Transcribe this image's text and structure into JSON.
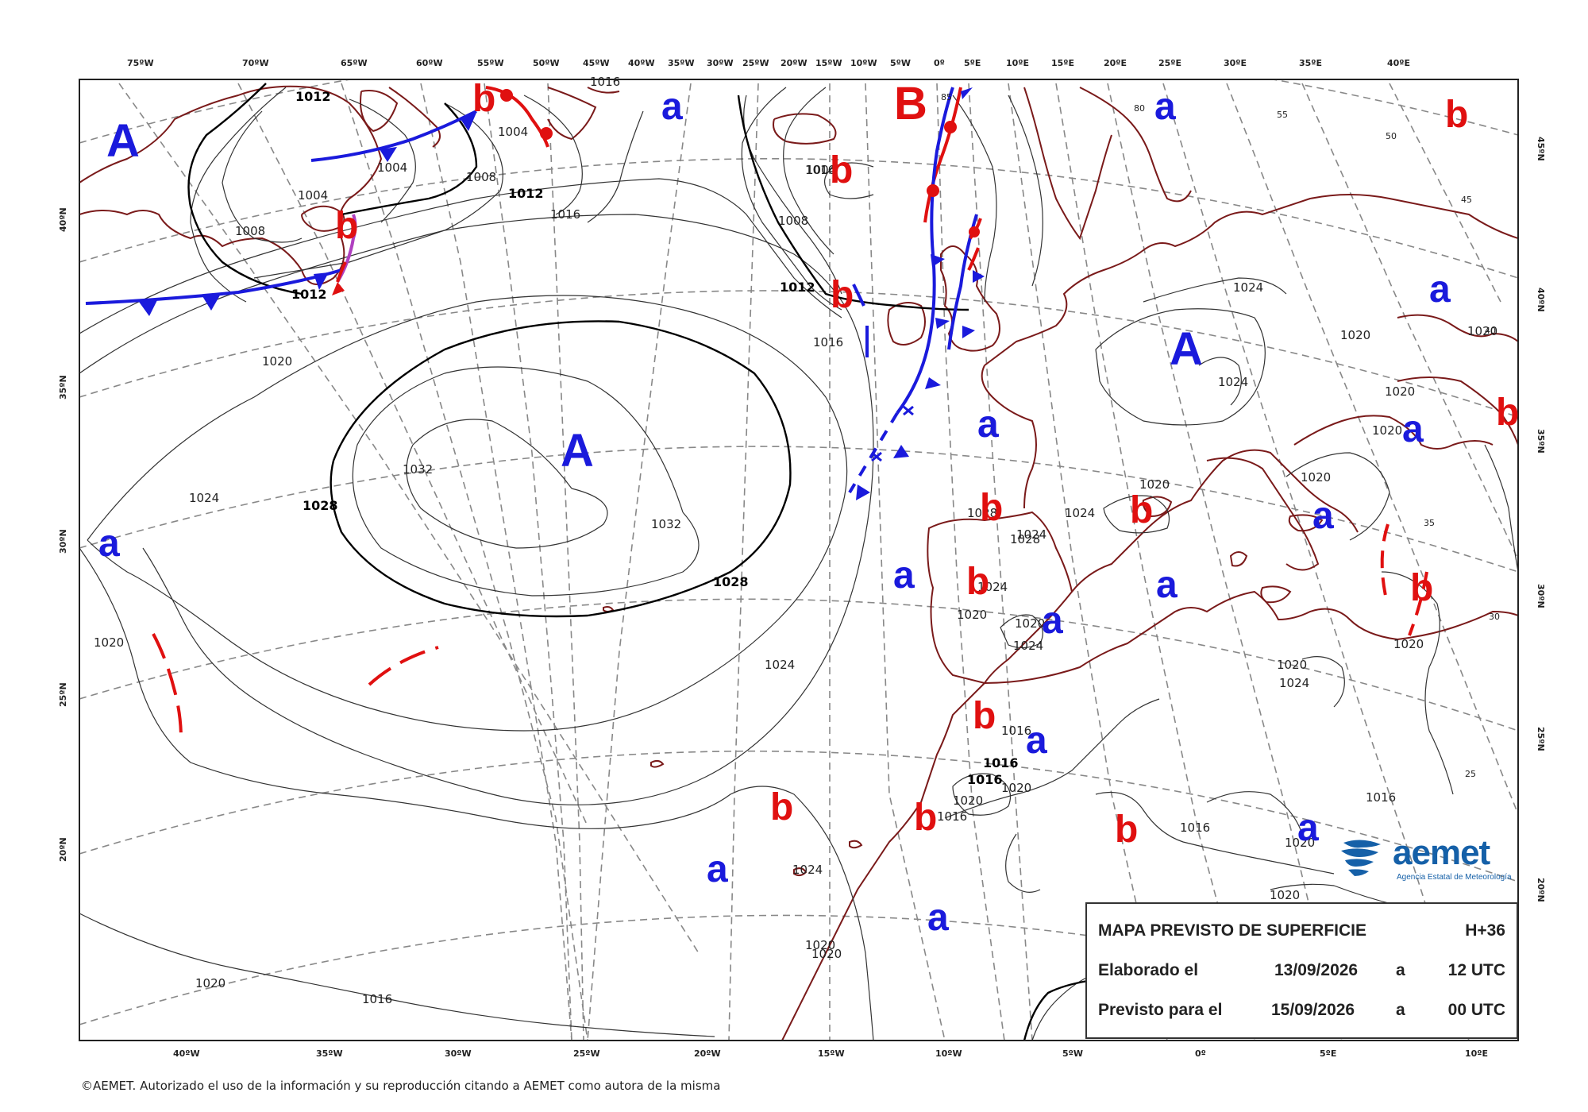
{
  "top_longitude_ticks": [
    "75ºW",
    "70ºW",
    "65ºW",
    "60ºW",
    "55ºW",
    "50ºW",
    "45ºW",
    "40ºW",
    "35ºW",
    "30ºW",
    "25ºW",
    "20ºW",
    "15ºW",
    "10ºW",
    "5ºW",
    "0º",
    "5ºE",
    "10ºE",
    "15ºE",
    "20ºE",
    "25ºE",
    "30ºE",
    "35ºE",
    "40ºE"
  ],
  "bottom_longitude_ticks": [
    "40ºW",
    "35ºW",
    "30ºW",
    "25ºW",
    "20ºW",
    "15ºW",
    "10ºW",
    "5ºW",
    "0º",
    "5ºE",
    "10ºE"
  ],
  "left_latitude_ticks": [
    "40ºN",
    "35ºN",
    "30ºN",
    "25ºN",
    "20ºN"
  ],
  "right_latitude_ticks": [
    "45ºN",
    "40ºN",
    "35ºN",
    "30ºN",
    "25ºN",
    "20ºN"
  ],
  "grid_labels": [
    "55",
    "50",
    "45",
    "40",
    "35",
    "30",
    "25",
    "85",
    "80"
  ],
  "isobar_labels": [
    "1012",
    "1004",
    "1004",
    "1008",
    "1012",
    "1016",
    "1008",
    "1012",
    "1016",
    "1004",
    "1016",
    "1004",
    "1008",
    "1012",
    "1016",
    "1020",
    "1024",
    "1020",
    "1024",
    "1032",
    "1028",
    "1032",
    "1028",
    "1024",
    "1020",
    "1020",
    "1020",
    "1024",
    "1020",
    "1020",
    "1020",
    "1024",
    "1024",
    "1028",
    "1028",
    "1024",
    "1020",
    "1020",
    "1024",
    "1016",
    "1016",
    "1016",
    "1020",
    "1020",
    "1016",
    "1016",
    "1016",
    "1020",
    "1020",
    "1024",
    "1020",
    "1020",
    "1020",
    "1020",
    "1016",
    "1020",
    "1024"
  ],
  "pressure_centers": [
    {
      "label": "A",
      "type": "high",
      "size": "big"
    },
    {
      "label": "A",
      "type": "high",
      "size": "big"
    },
    {
      "label": "A",
      "type": "high",
      "size": "big"
    },
    {
      "label": "B",
      "type": "low",
      "size": "big"
    },
    {
      "label": "a",
      "type": "high",
      "size": "small"
    },
    {
      "label": "b",
      "type": "low",
      "size": "small"
    }
  ],
  "info": {
    "title": "MAPA PREVISTO DE SUPERFICIE",
    "step": "H+36",
    "issued_label": "Elaborado el",
    "issued_date": "13/09/2026",
    "issued_sep": "a",
    "issued_time": "12 UTC",
    "valid_label": "Previsto para el",
    "valid_date": "15/09/2026",
    "valid_sep": "a",
    "valid_time": "00 UTC"
  },
  "logo": {
    "name": "aemet",
    "subtitle": "Agencia Estatal de Meteorología"
  },
  "copyright": "©AEMET. Autorizado el uso de la información y su reproducción citando a AEMET como autora de la misma",
  "colors": {
    "high": "#1a1adc",
    "low": "#e01010",
    "coast": "#7a1a1a",
    "grid": "#888888",
    "occluded": "#b040c0"
  }
}
